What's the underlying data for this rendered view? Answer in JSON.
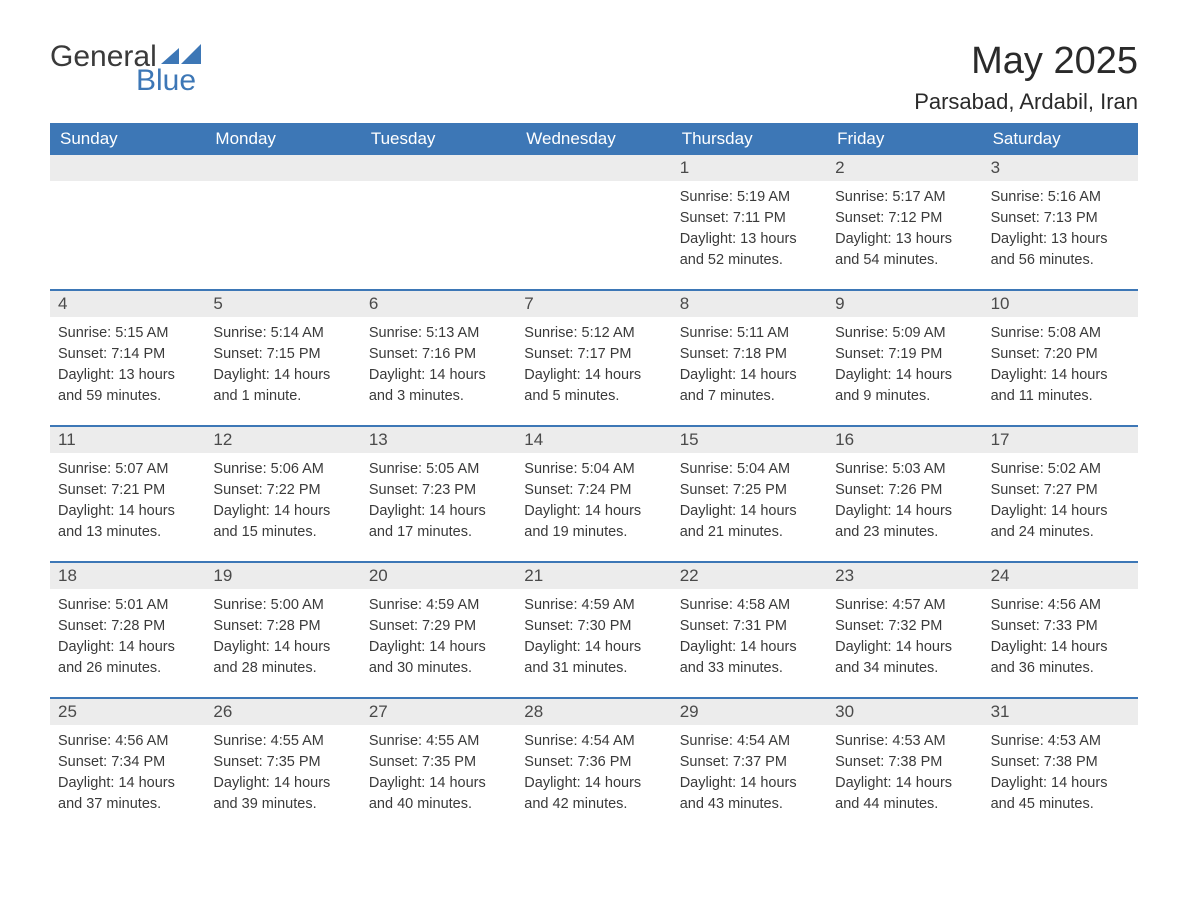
{
  "brand": {
    "word1": "General",
    "word2": "Blue"
  },
  "title": "May 2025",
  "location": "Parsabad, Ardabil, Iran",
  "colors": {
    "header_bg": "#3d77b6",
    "header_text": "#ffffff",
    "daynum_bg": "#ececec",
    "rule": "#3d77b6",
    "text": "#3a3a3a",
    "brand_blue": "#3d77b6"
  },
  "dow": [
    "Sunday",
    "Monday",
    "Tuesday",
    "Wednesday",
    "Thursday",
    "Friday",
    "Saturday"
  ],
  "labels": {
    "sunrise": "Sunrise:",
    "sunset": "Sunset:",
    "daylight": "Daylight:"
  },
  "weeks": [
    [
      {
        "empty": true
      },
      {
        "empty": true
      },
      {
        "empty": true
      },
      {
        "empty": true
      },
      {
        "day": "1",
        "sunrise": "5:19 AM",
        "sunset": "7:11 PM",
        "daylight": "13 hours and 52 minutes."
      },
      {
        "day": "2",
        "sunrise": "5:17 AM",
        "sunset": "7:12 PM",
        "daylight": "13 hours and 54 minutes."
      },
      {
        "day": "3",
        "sunrise": "5:16 AM",
        "sunset": "7:13 PM",
        "daylight": "13 hours and 56 minutes."
      }
    ],
    [
      {
        "day": "4",
        "sunrise": "5:15 AM",
        "sunset": "7:14 PM",
        "daylight": "13 hours and 59 minutes."
      },
      {
        "day": "5",
        "sunrise": "5:14 AM",
        "sunset": "7:15 PM",
        "daylight": "14 hours and 1 minute."
      },
      {
        "day": "6",
        "sunrise": "5:13 AM",
        "sunset": "7:16 PM",
        "daylight": "14 hours and 3 minutes."
      },
      {
        "day": "7",
        "sunrise": "5:12 AM",
        "sunset": "7:17 PM",
        "daylight": "14 hours and 5 minutes."
      },
      {
        "day": "8",
        "sunrise": "5:11 AM",
        "sunset": "7:18 PM",
        "daylight": "14 hours and 7 minutes."
      },
      {
        "day": "9",
        "sunrise": "5:09 AM",
        "sunset": "7:19 PM",
        "daylight": "14 hours and 9 minutes."
      },
      {
        "day": "10",
        "sunrise": "5:08 AM",
        "sunset": "7:20 PM",
        "daylight": "14 hours and 11 minutes."
      }
    ],
    [
      {
        "day": "11",
        "sunrise": "5:07 AM",
        "sunset": "7:21 PM",
        "daylight": "14 hours and 13 minutes."
      },
      {
        "day": "12",
        "sunrise": "5:06 AM",
        "sunset": "7:22 PM",
        "daylight": "14 hours and 15 minutes."
      },
      {
        "day": "13",
        "sunrise": "5:05 AM",
        "sunset": "7:23 PM",
        "daylight": "14 hours and 17 minutes."
      },
      {
        "day": "14",
        "sunrise": "5:04 AM",
        "sunset": "7:24 PM",
        "daylight": "14 hours and 19 minutes."
      },
      {
        "day": "15",
        "sunrise": "5:04 AM",
        "sunset": "7:25 PM",
        "daylight": "14 hours and 21 minutes."
      },
      {
        "day": "16",
        "sunrise": "5:03 AM",
        "sunset": "7:26 PM",
        "daylight": "14 hours and 23 minutes."
      },
      {
        "day": "17",
        "sunrise": "5:02 AM",
        "sunset": "7:27 PM",
        "daylight": "14 hours and 24 minutes."
      }
    ],
    [
      {
        "day": "18",
        "sunrise": "5:01 AM",
        "sunset": "7:28 PM",
        "daylight": "14 hours and 26 minutes."
      },
      {
        "day": "19",
        "sunrise": "5:00 AM",
        "sunset": "7:28 PM",
        "daylight": "14 hours and 28 minutes."
      },
      {
        "day": "20",
        "sunrise": "4:59 AM",
        "sunset": "7:29 PM",
        "daylight": "14 hours and 30 minutes."
      },
      {
        "day": "21",
        "sunrise": "4:59 AM",
        "sunset": "7:30 PM",
        "daylight": "14 hours and 31 minutes."
      },
      {
        "day": "22",
        "sunrise": "4:58 AM",
        "sunset": "7:31 PM",
        "daylight": "14 hours and 33 minutes."
      },
      {
        "day": "23",
        "sunrise": "4:57 AM",
        "sunset": "7:32 PM",
        "daylight": "14 hours and 34 minutes."
      },
      {
        "day": "24",
        "sunrise": "4:56 AM",
        "sunset": "7:33 PM",
        "daylight": "14 hours and 36 minutes."
      }
    ],
    [
      {
        "day": "25",
        "sunrise": "4:56 AM",
        "sunset": "7:34 PM",
        "daylight": "14 hours and 37 minutes."
      },
      {
        "day": "26",
        "sunrise": "4:55 AM",
        "sunset": "7:35 PM",
        "daylight": "14 hours and 39 minutes."
      },
      {
        "day": "27",
        "sunrise": "4:55 AM",
        "sunset": "7:35 PM",
        "daylight": "14 hours and 40 minutes."
      },
      {
        "day": "28",
        "sunrise": "4:54 AM",
        "sunset": "7:36 PM",
        "daylight": "14 hours and 42 minutes."
      },
      {
        "day": "29",
        "sunrise": "4:54 AM",
        "sunset": "7:37 PM",
        "daylight": "14 hours and 43 minutes."
      },
      {
        "day": "30",
        "sunrise": "4:53 AM",
        "sunset": "7:38 PM",
        "daylight": "14 hours and 44 minutes."
      },
      {
        "day": "31",
        "sunrise": "4:53 AM",
        "sunset": "7:38 PM",
        "daylight": "14 hours and 45 minutes."
      }
    ]
  ]
}
